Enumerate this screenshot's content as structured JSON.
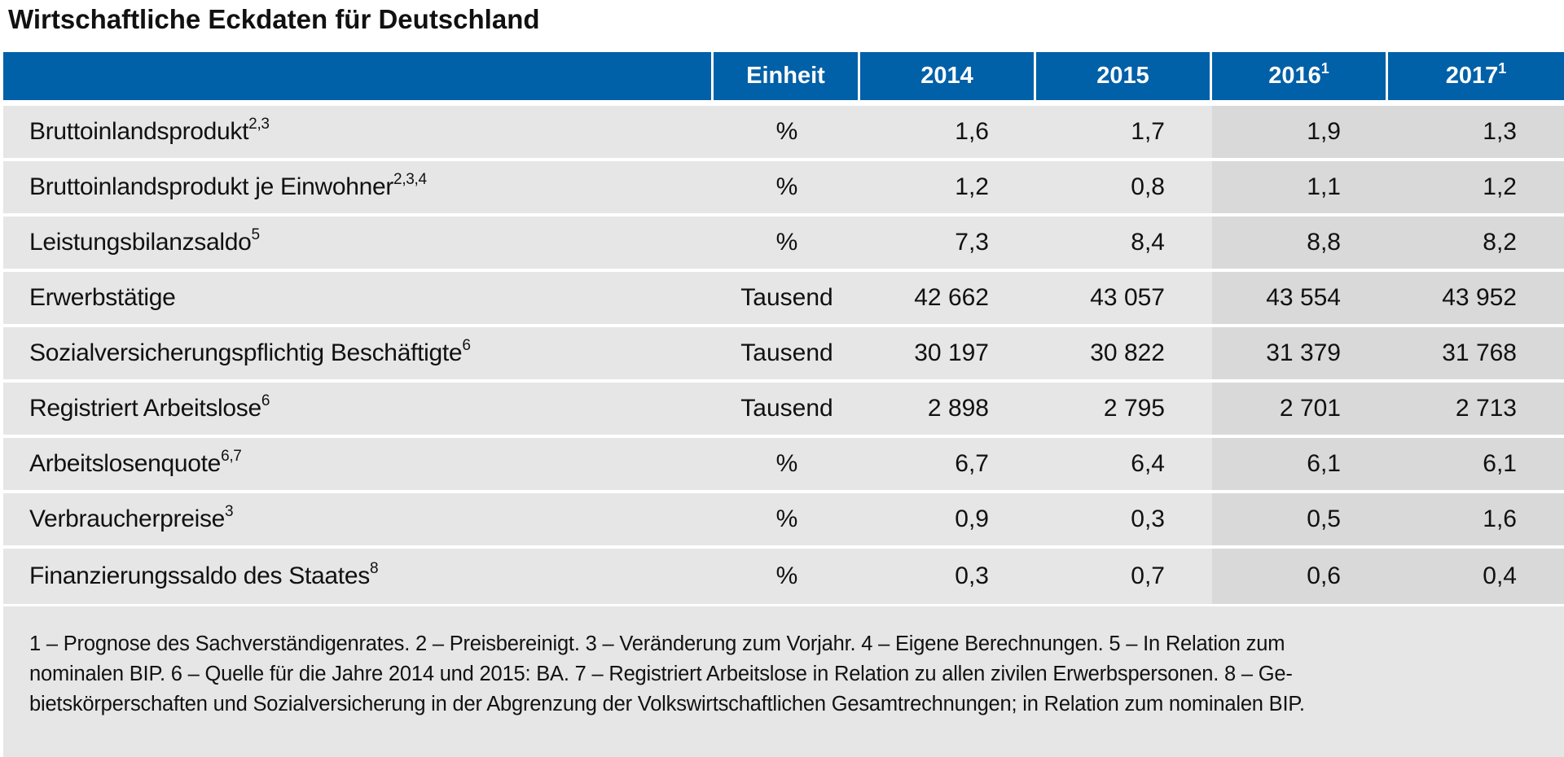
{
  "title": "Wirtschaftliche Eckdaten für Deutschland",
  "chart_data": {
    "type": "table",
    "title": "Wirtschaftliche Eckdaten für Deutschland",
    "columns": [
      {
        "label": "",
        "sup": ""
      },
      {
        "label": "Einheit",
        "sup": ""
      },
      {
        "label": "2014",
        "sup": ""
      },
      {
        "label": "2015",
        "sup": ""
      },
      {
        "label": "2016",
        "sup": "1"
      },
      {
        "label": "2017",
        "sup": "1"
      }
    ],
    "rows": [
      {
        "label": "Bruttoinlandsprodukt",
        "sup": "2,3",
        "unit": "%",
        "values": [
          "1,6",
          "1,7",
          "1,9",
          "1,3"
        ]
      },
      {
        "label": "Bruttoinlandsprodukt je Einwohner",
        "sup": "2,3,4",
        "unit": "%",
        "values": [
          "1,2",
          "0,8",
          "1,1",
          "1,2"
        ]
      },
      {
        "label": "Leistungsbilanzsaldo",
        "sup": "5",
        "unit": "%",
        "values": [
          "7,3",
          "8,4",
          "8,8",
          "8,2"
        ]
      },
      {
        "label": "Erwerbstätige",
        "sup": "",
        "unit": "Tausend",
        "values": [
          "42 662",
          "43 057",
          "43 554",
          "43 952"
        ]
      },
      {
        "label": "Sozialversicherungspflichtig Beschäftigte",
        "sup": "6",
        "unit": "Tausend",
        "values": [
          "30 197",
          "30 822",
          "31 379",
          "31 768"
        ]
      },
      {
        "label": "Registriert Arbeitslose",
        "sup": "6",
        "unit": "Tausend",
        "values": [
          "2 898",
          "2 795",
          "2 701",
          "2 713"
        ]
      },
      {
        "label": "Arbeitslosenquote",
        "sup": "6,7",
        "unit": "%",
        "values": [
          "6,7",
          "6,4",
          "6,1",
          "6,1"
        ]
      },
      {
        "label": "Verbraucherpreise",
        "sup": "3",
        "unit": "%",
        "values": [
          "0,9",
          "0,3",
          "0,5",
          "1,6"
        ]
      },
      {
        "label": "Finanzierungssaldo des Staates",
        "sup": "8",
        "unit": "%",
        "values": [
          "0,3",
          "0,7",
          "0,6",
          "0,4"
        ]
      }
    ],
    "footnote_lines": [
      "1 – Prognose des Sachverständigenrates.  2 – Preisbereinigt.  3 – Veränderung zum Vorjahr.  4 – Eigene Berechnungen.  5 – In Relation zum",
      "nominalen BIP.  6 – Quelle für die Jahre 2014 und 2015: BA.  7 – Registriert Arbeitslose in Relation zu allen zivilen Erwerbspersonen.  8 – Ge-",
      "bietskörperschaften und Sozialversicherung in der Abgrenzung der Volkswirtschaftlichen Gesamtrechnungen; in Relation zum nominalen BIP."
    ]
  },
  "colors": {
    "header_blue": "#0060a8",
    "row_gray": "#e6e6e6",
    "forecast_gray": "#d9d9d9"
  }
}
